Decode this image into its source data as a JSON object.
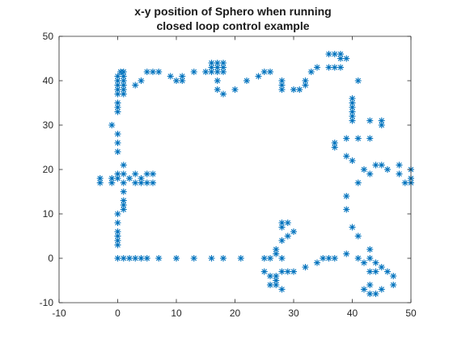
{
  "chart_data": {
    "type": "scatter",
    "title": "x-y position of Sphero when running closed loop control example",
    "title_lines": [
      "x-y position of Sphero when running",
      "closed loop control example"
    ],
    "xlabel": "",
    "ylabel": "",
    "xlim": [
      -10,
      50
    ],
    "ylim": [
      -10,
      50
    ],
    "xticks": [
      -10,
      0,
      10,
      20,
      30,
      40,
      50
    ],
    "yticks": [
      -10,
      0,
      10,
      20,
      30,
      40,
      50
    ],
    "xtick_labels": [
      "-10",
      "0",
      "10",
      "20",
      "30",
      "40",
      "50"
    ],
    "ytick_labels": [
      "-10",
      "0",
      "10",
      "20",
      "30",
      "40",
      "50"
    ],
    "grid": false,
    "box": true,
    "marker": "asterisk",
    "marker_color": "#0072BD",
    "series": [
      {
        "points": [
          [
            0,
            41
          ],
          [
            0,
            40
          ],
          [
            0,
            39
          ],
          [
            0,
            38
          ],
          [
            0,
            37
          ],
          [
            0,
            35
          ],
          [
            0,
            34
          ],
          [
            0,
            33
          ],
          [
            1,
            42
          ],
          [
            1,
            41
          ],
          [
            1,
            40
          ],
          [
            1,
            39
          ],
          [
            1,
            38
          ],
          [
            1,
            37
          ],
          [
            0.5,
            42
          ],
          [
            3,
            39
          ],
          [
            4,
            40
          ],
          [
            5,
            42
          ],
          [
            6,
            42
          ],
          [
            7,
            42
          ],
          [
            9,
            41
          ],
          [
            10,
            40
          ],
          [
            11,
            40
          ],
          [
            11,
            41
          ],
          [
            13,
            42
          ],
          [
            15,
            42
          ],
          [
            16,
            42
          ],
          [
            16,
            44
          ],
          [
            16,
            43
          ],
          [
            17,
            44
          ],
          [
            17,
            43
          ],
          [
            17,
            42
          ],
          [
            17,
            40
          ],
          [
            18,
            44
          ],
          [
            18,
            43
          ],
          [
            18,
            42
          ],
          [
            17,
            38
          ],
          [
            18,
            37
          ],
          [
            20,
            38
          ],
          [
            22,
            40
          ],
          [
            24,
            41
          ],
          [
            25,
            42
          ],
          [
            26,
            42
          ],
          [
            28,
            40
          ],
          [
            28,
            39
          ],
          [
            28,
            38
          ],
          [
            30,
            38
          ],
          [
            31,
            38
          ],
          [
            32,
            39
          ],
          [
            32,
            40
          ],
          [
            33,
            42
          ],
          [
            34,
            43
          ],
          [
            36,
            46
          ],
          [
            36,
            43
          ],
          [
            37,
            46
          ],
          [
            37,
            43
          ],
          [
            38,
            46
          ],
          [
            38,
            45
          ],
          [
            38,
            43
          ],
          [
            39,
            45
          ],
          [
            40,
            36
          ],
          [
            40,
            35
          ],
          [
            40,
            34
          ],
          [
            40,
            33
          ],
          [
            40,
            32
          ],
          [
            40,
            31
          ],
          [
            41,
            40
          ],
          [
            -1,
            30
          ],
          [
            0,
            28
          ],
          [
            0,
            26
          ],
          [
            0,
            24
          ],
          [
            1,
            21
          ],
          [
            0,
            19
          ],
          [
            1,
            19
          ],
          [
            0,
            18
          ],
          [
            -1,
            18
          ],
          [
            -1,
            17
          ],
          [
            -3,
            18
          ],
          [
            -3,
            17
          ],
          [
            1,
            17
          ],
          [
            1,
            15
          ],
          [
            1,
            13
          ],
          [
            1,
            12
          ],
          [
            1,
            11
          ],
          [
            0,
            10
          ],
          [
            0,
            8
          ],
          [
            0,
            6
          ],
          [
            0,
            5
          ],
          [
            0,
            4
          ],
          [
            0,
            3
          ],
          [
            2,
            18
          ],
          [
            3,
            19
          ],
          [
            3,
            17
          ],
          [
            4,
            18
          ],
          [
            4,
            17
          ],
          [
            5,
            19
          ],
          [
            5,
            17
          ],
          [
            6,
            19
          ],
          [
            6,
            17
          ],
          [
            0,
            0
          ],
          [
            1,
            0
          ],
          [
            2,
            0
          ],
          [
            3,
            0
          ],
          [
            4,
            0
          ],
          [
            5,
            0
          ],
          [
            7,
            0
          ],
          [
            10,
            0
          ],
          [
            13,
            0
          ],
          [
            16,
            0
          ],
          [
            18,
            0
          ],
          [
            21,
            0
          ],
          [
            25,
            0
          ],
          [
            26,
            0
          ],
          [
            27,
            1
          ],
          [
            27,
            2
          ],
          [
            28,
            4
          ],
          [
            28,
            7
          ],
          [
            28,
            8
          ],
          [
            29,
            8
          ],
          [
            29,
            5
          ],
          [
            30,
            6
          ],
          [
            28,
            0
          ],
          [
            25,
            -3
          ],
          [
            26,
            -4
          ],
          [
            27,
            -4
          ],
          [
            27,
            -5
          ],
          [
            27,
            -6
          ],
          [
            28,
            -7
          ],
          [
            26,
            -6
          ],
          [
            28,
            -3
          ],
          [
            29,
            -3
          ],
          [
            30,
            -3
          ],
          [
            32,
            -2
          ],
          [
            34,
            -1
          ],
          [
            35,
            0
          ],
          [
            36,
            0
          ],
          [
            37,
            0
          ],
          [
            39,
            1
          ],
          [
            41,
            0
          ],
          [
            42,
            -1
          ],
          [
            43,
            0
          ],
          [
            43,
            2
          ],
          [
            43,
            -3
          ],
          [
            44,
            -3
          ],
          [
            44,
            -1
          ],
          [
            45,
            -2
          ],
          [
            46,
            -3
          ],
          [
            47,
            -4
          ],
          [
            47,
            -6
          ],
          [
            42,
            -7
          ],
          [
            43,
            -6
          ],
          [
            43,
            -8
          ],
          [
            44,
            -8
          ],
          [
            45,
            -7
          ],
          [
            37,
            26
          ],
          [
            37,
            25
          ],
          [
            39,
            27
          ],
          [
            39,
            23
          ],
          [
            41,
            27
          ],
          [
            40,
            22
          ],
          [
            41,
            17
          ],
          [
            39,
            14
          ],
          [
            39,
            11
          ],
          [
            40,
            7
          ],
          [
            41,
            5
          ],
          [
            42,
            20
          ],
          [
            43,
            19
          ],
          [
            43,
            27
          ],
          [
            43,
            31
          ],
          [
            44,
            21
          ],
          [
            45,
            21
          ],
          [
            45,
            31
          ],
          [
            45,
            30
          ],
          [
            46,
            20
          ],
          [
            48,
            21
          ],
          [
            48,
            19
          ],
          [
            49,
            17
          ],
          [
            50,
            20
          ],
          [
            50,
            18
          ],
          [
            50,
            17
          ]
        ]
      }
    ]
  }
}
